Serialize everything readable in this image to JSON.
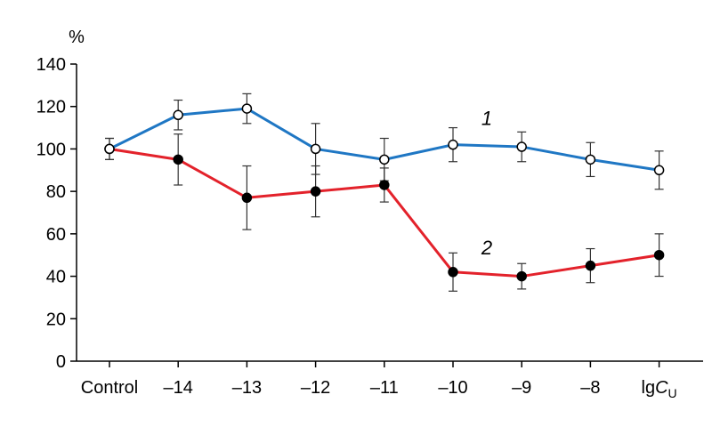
{
  "chart_data": {
    "type": "line",
    "ylabel": "%",
    "ylim": [
      0,
      140
    ],
    "yticks": [
      0,
      20,
      40,
      60,
      80,
      100,
      120,
      140
    ],
    "categories": [
      "Control",
      "–14",
      "–13",
      "–12",
      "–11",
      "–10",
      "–9",
      "–8",
      "lgC"
    ],
    "x_last_label_subscript": "U",
    "grid": false,
    "series": [
      {
        "name": "1",
        "color": "#1f77c4",
        "marker": "open-circle",
        "values": [
          100,
          116,
          119,
          100,
          95,
          102,
          101,
          95,
          90
        ],
        "errors": [
          5,
          7,
          7,
          12,
          10,
          8,
          7,
          8,
          9
        ]
      },
      {
        "name": "2",
        "color": "#e3222b",
        "marker": "filled-circle",
        "values": [
          100,
          95,
          77,
          80,
          83,
          42,
          40,
          45,
          50
        ],
        "errors": [
          5,
          12,
          15,
          12,
          8,
          9,
          6,
          8,
          10
        ]
      }
    ]
  }
}
